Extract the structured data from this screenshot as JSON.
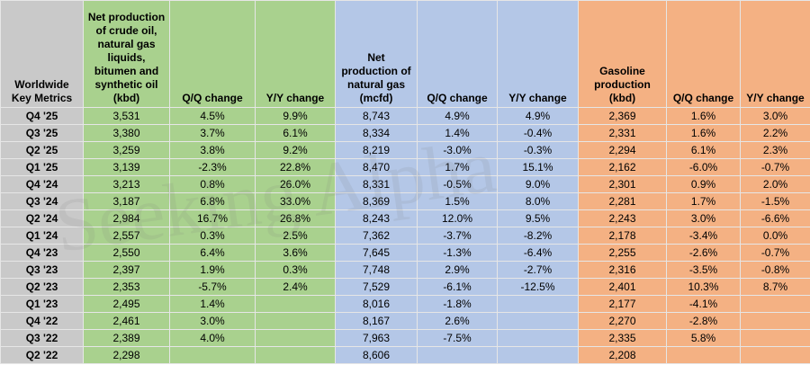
{
  "watermark": "Seeking Alpha",
  "table": {
    "headers": [
      "Worldwide Key Metrics",
      "Net production of crude oil, natural gas liquids, bitumen and synthetic oil (kbd)",
      "Q/Q change",
      "Y/Y change",
      "Net production of natural gas (mcfd)",
      "Q/Q change",
      "Y/Y change",
      "Gasoline production (kbd)",
      "Q/Q change",
      "Y/Y change"
    ],
    "rows": [
      [
        "Q4 '25",
        "3,531",
        "4.5%",
        "9.9%",
        "8,743",
        "4.9%",
        "4.9%",
        "2,369",
        "1.6%",
        "3.0%"
      ],
      [
        "Q3 '25",
        "3,380",
        "3.7%",
        "6.1%",
        "8,334",
        "1.4%",
        "-0.4%",
        "2,331",
        "1.6%",
        "2.2%"
      ],
      [
        "Q2 '25",
        "3,259",
        "3.8%",
        "9.2%",
        "8,219",
        "-3.0%",
        "-0.3%",
        "2,294",
        "6.1%",
        "2.3%"
      ],
      [
        "Q1 '25",
        "3,139",
        "-2.3%",
        "22.8%",
        "8,470",
        "1.7%",
        "15.1%",
        "2,162",
        "-6.0%",
        "-0.7%"
      ],
      [
        "Q4 '24",
        "3,213",
        "0.8%",
        "26.0%",
        "8,331",
        "-0.5%",
        "9.0%",
        "2,301",
        "0.9%",
        "2.0%"
      ],
      [
        "Q3 '24",
        "3,187",
        "6.8%",
        "33.0%",
        "8,369",
        "1.5%",
        "8.0%",
        "2,281",
        "1.7%",
        "-1.5%"
      ],
      [
        "Q2 '24",
        "2,984",
        "16.7%",
        "26.8%",
        "8,243",
        "12.0%",
        "9.5%",
        "2,243",
        "3.0%",
        "-6.6%"
      ],
      [
        "Q1 '24",
        "2,557",
        "0.3%",
        "2.5%",
        "7,362",
        "-3.7%",
        "-8.2%",
        "2,178",
        "-3.4%",
        "0.0%"
      ],
      [
        "Q4 '23",
        "2,550",
        "6.4%",
        "3.6%",
        "7,645",
        "-1.3%",
        "-6.4%",
        "2,255",
        "-2.6%",
        "-0.7%"
      ],
      [
        "Q3 '23",
        "2,397",
        "1.9%",
        "0.3%",
        "7,748",
        "2.9%",
        "-2.7%",
        "2,316",
        "-3.5%",
        "-0.8%"
      ],
      [
        "Q2 '23",
        "2,353",
        "-5.7%",
        "2.4%",
        "7,529",
        "-6.1%",
        "-12.5%",
        "2,401",
        "10.3%",
        "8.7%"
      ],
      [
        "Q1 '23",
        "2,495",
        "1.4%",
        null,
        "8,016",
        "-1.8%",
        null,
        "2,177",
        "-4.1%",
        null
      ],
      [
        "Q4 '22",
        "2,461",
        "3.0%",
        null,
        "8,167",
        "2.6%",
        null,
        "2,270",
        "-2.8%",
        null
      ],
      [
        "Q3 '22",
        "2,389",
        "4.0%",
        null,
        "7,963",
        "-7.5%",
        null,
        "2,335",
        "5.8%",
        null
      ],
      [
        "Q2 '22",
        "2,298",
        null,
        null,
        "8,606",
        null,
        null,
        "2,208",
        null,
        null
      ]
    ]
  }
}
